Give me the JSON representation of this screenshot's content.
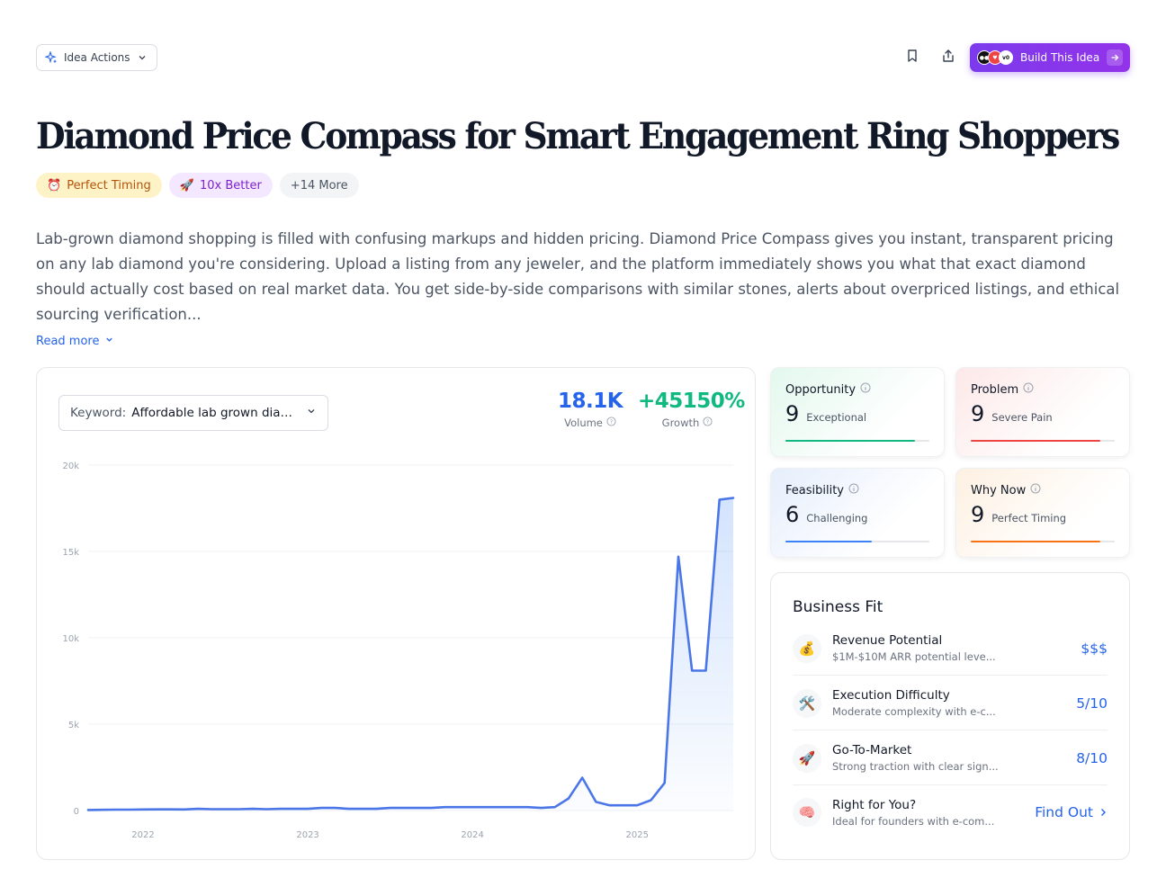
{
  "header": {
    "idea_actions_label": "Idea Actions",
    "build_label": "Build This Idea"
  },
  "title": "Diamond Price Compass for Smart Engagement Ring Shoppers",
  "tags": {
    "timing": "Perfect Timing",
    "better": "10x Better",
    "more": "+14 More"
  },
  "description": "Lab-grown diamond shopping is filled with confusing markups and hidden pricing. Diamond Price Compass gives you instant, transparent pricing on any lab diamond you're considering. Upload a listing from any jeweler, and the platform immediately shows you what that exact diamond should actually cost based on real market data. You get side-by-side comparisons with similar stones, alerts about overpriced listings, and ethical sourcing verification...",
  "read_more": "Read more",
  "keyword": {
    "label": "Keyword:",
    "value": "Affordable lab grown diamonds"
  },
  "metrics": {
    "volume_value": "18.1K",
    "volume_label": "Volume",
    "growth_value": "+45150%",
    "growth_label": "Growth"
  },
  "scores": {
    "opportunity": {
      "label": "Opportunity",
      "value": "9",
      "sub": "Exceptional",
      "fraction": 0.9,
      "color": "#10b981"
    },
    "problem": {
      "label": "Problem",
      "value": "9",
      "sub": "Severe Pain",
      "fraction": 0.9,
      "color": "#ef4444"
    },
    "feasibility": {
      "label": "Feasibility",
      "value": "6",
      "sub": "Challenging",
      "fraction": 0.6,
      "color": "#3b82f6"
    },
    "why_now": {
      "label": "Why Now",
      "value": "9",
      "sub": "Perfect Timing",
      "fraction": 0.9,
      "color": "#f97316"
    }
  },
  "business_fit": {
    "title": "Business Fit",
    "rows": [
      {
        "label": "Revenue Potential",
        "desc": "$1M-$10M ARR potential leve...",
        "value": "$$$",
        "icon": "money-bag-icon"
      },
      {
        "label": "Execution Difficulty",
        "desc": "Moderate complexity with e-c...",
        "value": "5/10",
        "icon": "tools-icon"
      },
      {
        "label": "Go-To-Market",
        "desc": "Strong traction with clear sign...",
        "value": "8/10",
        "icon": "rocket-icon"
      },
      {
        "label": "Right for You?",
        "desc": "Ideal for founders with e-com...",
        "value": "Find Out",
        "icon": "brain-icon"
      }
    ]
  },
  "chart_data": {
    "type": "area",
    "ylim": [
      0,
      20000
    ],
    "y_ticks": [
      "0",
      "5k",
      "10k",
      "15k",
      "20k"
    ],
    "x_ticks": [
      "2022",
      "2023",
      "2024",
      "2025"
    ],
    "x": [
      "2021-09",
      "2021-10",
      "2021-11",
      "2021-12",
      "2022-01",
      "2022-02",
      "2022-03",
      "2022-04",
      "2022-05",
      "2022-06",
      "2022-07",
      "2022-08",
      "2022-09",
      "2022-10",
      "2022-11",
      "2022-12",
      "2023-01",
      "2023-02",
      "2023-03",
      "2023-04",
      "2023-05",
      "2023-06",
      "2023-07",
      "2023-08",
      "2023-09",
      "2023-10",
      "2023-11",
      "2023-12",
      "2024-01",
      "2024-02",
      "2024-03",
      "2024-04",
      "2024-05",
      "2024-06",
      "2024-07",
      "2024-08",
      "2024-09",
      "2024-10",
      "2024-11",
      "2024-12",
      "2025-01",
      "2025-02",
      "2025-03",
      "2025-04",
      "2025-05",
      "2025-06",
      "2025-07",
      "2025-08"
    ],
    "series": [
      {
        "values": [
          30,
          40,
          50,
          50,
          60,
          70,
          70,
          60,
          100,
          80,
          80,
          80,
          100,
          80,
          100,
          100,
          100,
          150,
          150,
          100,
          100,
          100,
          150,
          150,
          150,
          150,
          200,
          200,
          200,
          200,
          200,
          200,
          200,
          150,
          200,
          700,
          1900,
          500,
          300,
          300,
          300,
          600,
          1600,
          14700,
          8100,
          8100,
          18000,
          18100
        ]
      }
    ]
  }
}
